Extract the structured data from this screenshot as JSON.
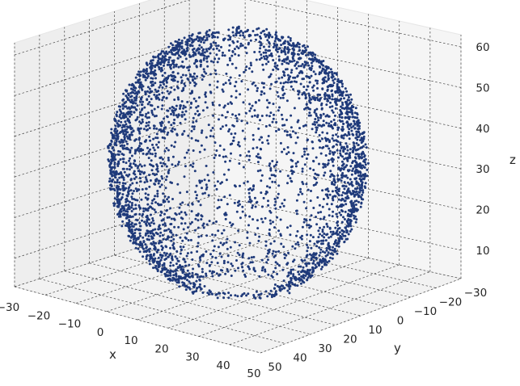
{
  "chart_data": {
    "type": "scatter",
    "projection": "3d",
    "title": "",
    "xlabel": "x",
    "ylabel": "y",
    "zlabel": "z",
    "xlim": [
      -30,
      50
    ],
    "ylim": [
      -30,
      50
    ],
    "zlim": [
      3,
      63
    ],
    "x_ticks": [
      "−30",
      "−20",
      "−10",
      "0",
      "10",
      "20",
      "30",
      "40",
      "50"
    ],
    "y_ticks": [
      "−30",
      "−20",
      "−10",
      "0",
      "10",
      "20",
      "30",
      "40",
      "50"
    ],
    "z_ticks": [
      "10",
      "20",
      "30",
      "40",
      "50",
      "60"
    ],
    "grid": true,
    "marker_color": "#1f3a7a",
    "pane_color": "#f2f2f2",
    "series": [
      {
        "shape": "partial spherical shell (point cloud, approx. 5000 points)",
        "center": [
          10,
          10,
          33
        ],
        "radius": 32,
        "points": [
          [
            42,
            10,
            33
          ],
          [
            10,
            42,
            33
          ],
          [
            10,
            10,
            63
          ],
          [
            33,
            33,
            33
          ],
          [
            -10,
            30,
            50
          ],
          [
            30,
            -10,
            45
          ],
          [
            25,
            35,
            15
          ],
          [
            35,
            20,
            8
          ],
          [
            -15,
            25,
            30
          ],
          [
            0,
            40,
            45
          ],
          [
            40,
            25,
            40
          ],
          [
            20,
            38,
            55
          ],
          [
            -5,
            35,
            20
          ],
          [
            38,
            5,
            20
          ],
          [
            15,
            25,
            60
          ]
        ]
      }
    ]
  }
}
